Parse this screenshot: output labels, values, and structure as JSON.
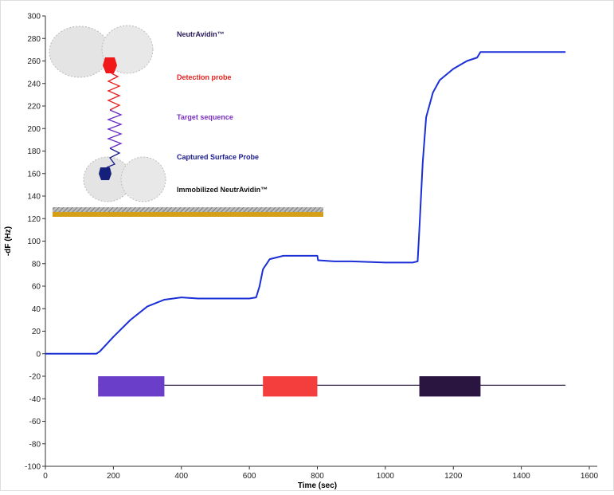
{
  "chart_data": {
    "type": "line",
    "x_label": "Time (sec)",
    "y_label": "-dF (Hz)",
    "xlim": [
      0,
      1600
    ],
    "ylim": [
      -100,
      300
    ],
    "xticks": [
      0,
      200,
      400,
      600,
      800,
      1000,
      1200,
      1400,
      1600
    ],
    "yticks": [
      -100,
      -80,
      -60,
      -40,
      -20,
      0,
      20,
      40,
      60,
      80,
      100,
      120,
      140,
      160,
      180,
      200,
      220,
      240,
      260,
      280,
      300
    ],
    "color": "#1a2fd6",
    "x": [
      0,
      50,
      100,
      150,
      160,
      200,
      250,
      300,
      350,
      400,
      450,
      500,
      550,
      600,
      620,
      630,
      640,
      660,
      700,
      750,
      800,
      802,
      850,
      900,
      1000,
      1080,
      1095,
      1100,
      1110,
      1120,
      1140,
      1160,
      1200,
      1240,
      1270,
      1280,
      1300,
      1400,
      1500,
      1530
    ],
    "values": [
      0,
      0,
      0,
      0,
      2,
      15,
      30,
      42,
      48,
      50,
      49,
      49,
      49,
      49,
      50,
      60,
      75,
      84,
      87,
      87,
      87,
      83,
      82,
      82,
      81,
      81,
      82,
      110,
      170,
      210,
      232,
      243,
      253,
      260,
      263,
      268,
      268,
      268,
      268,
      268
    ],
    "reference_line": {
      "value": -28,
      "start": 155,
      "end": 1530
    },
    "injections": [
      {
        "start": 155,
        "end": 350,
        "top": -20,
        "bottom": -38,
        "color": "#6a3ec8"
      },
      {
        "start": 640,
        "end": 800,
        "top": -20,
        "bottom": -38,
        "color": "#f43d3d"
      },
      {
        "start": 1100,
        "end": 1280,
        "top": -20,
        "bottom": -38,
        "color": "#2a1440"
      }
    ],
    "annotations": [
      {
        "text": "NeutrAvidin™",
        "color": "#2a1a5a"
      },
      {
        "text": "Detection probe",
        "color": "#e82020"
      },
      {
        "text": "Target sequence",
        "color": "#7a30c0"
      },
      {
        "text": "Captured Surface Probe",
        "color": "#1a1a90"
      },
      {
        "text": "Immobilized NeutrAvidin™",
        "color": "#111111"
      }
    ]
  }
}
